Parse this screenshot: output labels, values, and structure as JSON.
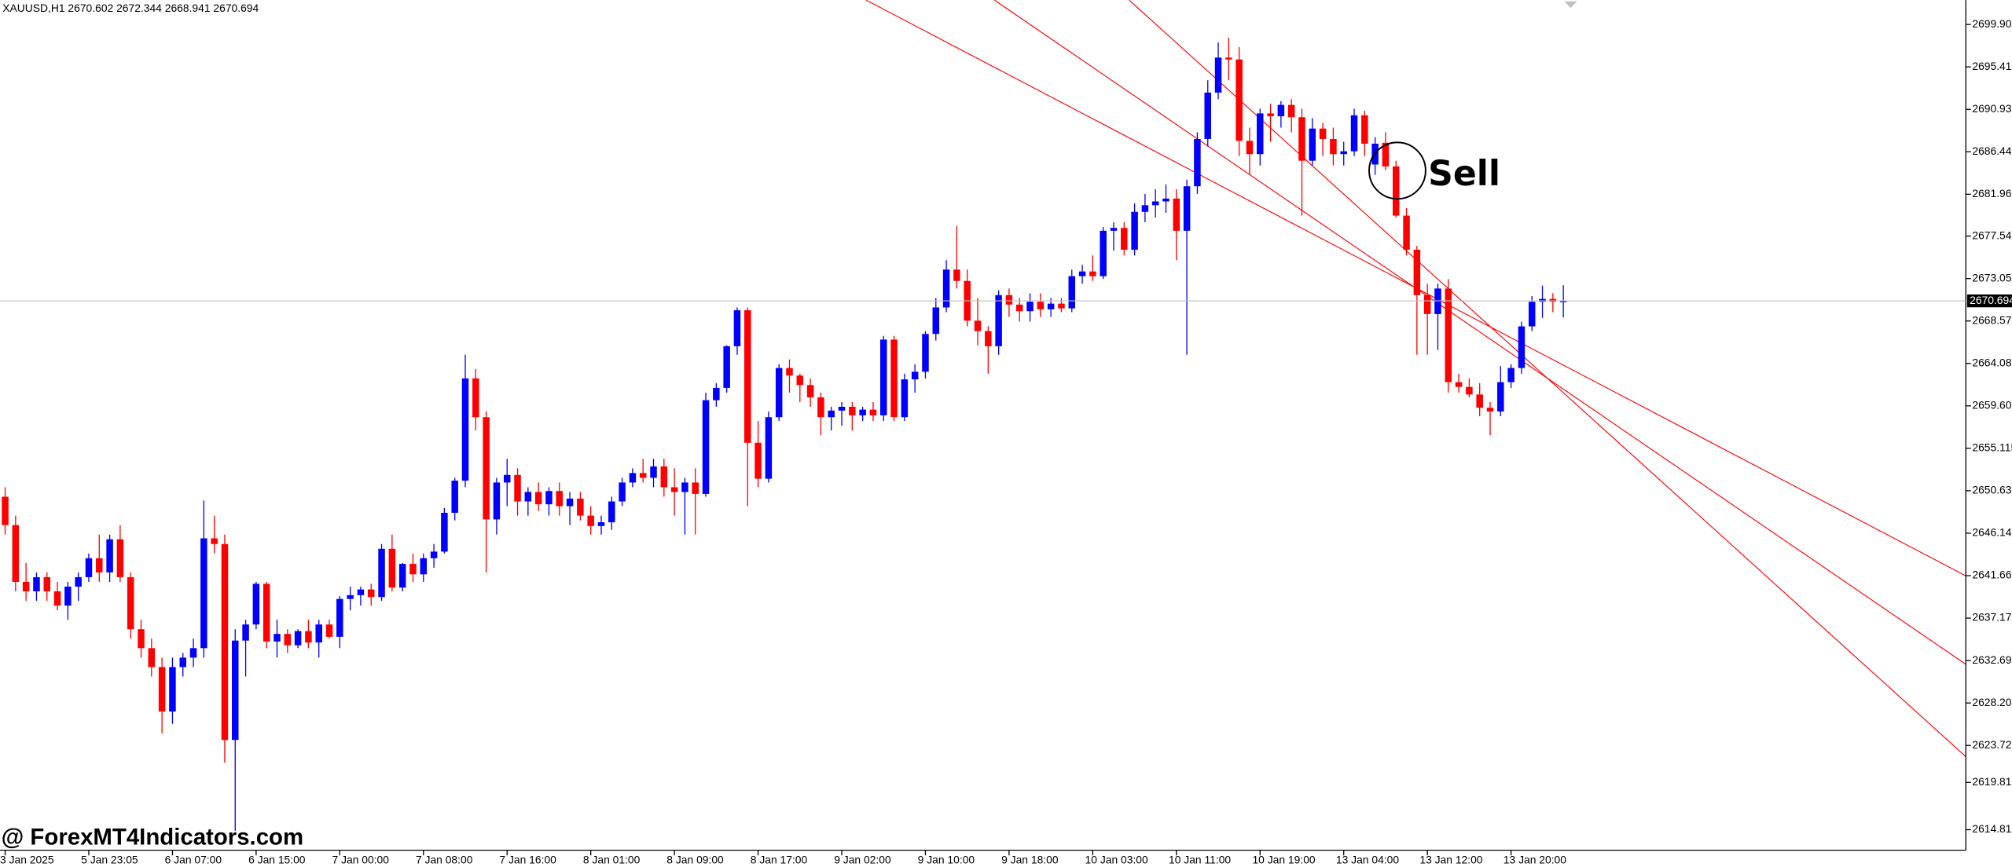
{
  "chart_data": {
    "type": "candlestick",
    "header": "XAUUSD,H1  2670.602 2672.344 2668.941 2670.694",
    "annotation": "Sell",
    "watermark": "@ ForexMT4Indicators.com",
    "up_color": "#0000ff",
    "down_color": "#ff0000",
    "last_price": 2670.694,
    "ylim": [
      2612.65,
      2702.47
    ],
    "yticks": [
      {
        "value": 2699.9,
        "label": "2699.900"
      },
      2695.415,
      2690.93,
      2686.445,
      {
        "value": 2681.96,
        "label": "2681.960"
      },
      {
        "value": 2677.54,
        "label": "2677.540"
      },
      2673.055,
      {
        "value": 2668.57,
        "label": "2668.570"
      },
      2664.085,
      {
        "value": 2659.6,
        "label": "2659.600"
      },
      2655.115,
      {
        "value": 2650.63,
        "label": "2650.630"
      },
      2646.145,
      {
        "value": 2641.66,
        "label": "2641.660"
      },
      2637.175,
      {
        "value": 2632.69,
        "label": "2632.690"
      },
      2628.205,
      {
        "value": 2623.72,
        "label": "2623.720"
      },
      2619.815,
      2614.815
    ],
    "xticks": [
      {
        "value": 0,
        "label": "3 Jan 2025"
      },
      {
        "value": 8,
        "label": "5 Jan 23:05"
      },
      {
        "value": 16,
        "label": "6 Jan 07:00"
      },
      {
        "value": 24,
        "label": "6 Jan 15:00"
      },
      {
        "value": 32,
        "label": "7 Jan 00:00"
      },
      {
        "value": 40,
        "label": "7 Jan 08:00"
      },
      {
        "value": 48,
        "label": "7 Jan 16:00"
      },
      {
        "value": 56,
        "label": "8 Jan 01:00"
      },
      {
        "value": 64,
        "label": "8 Jan 09:00"
      },
      {
        "value": 72,
        "label": "8 Jan 17:00"
      },
      {
        "value": 80,
        "label": "9 Jan 02:00"
      },
      {
        "value": 88,
        "label": "9 Jan 10:00"
      },
      {
        "value": 96,
        "label": "9 Jan 18:00"
      },
      {
        "value": 104,
        "label": "10 Jan 03:00"
      },
      {
        "value": 112,
        "label": "10 Jan 11:00"
      },
      {
        "value": 120,
        "label": "10 Jan 19:00"
      },
      {
        "value": 128,
        "label": "13 Jan 04:00"
      },
      {
        "value": 136,
        "label": "13 Jan 12:00"
      },
      {
        "value": 144,
        "label": "13 Jan 20:00"
      }
    ],
    "candles": [
      {
        "o": 2650,
        "h": 2651,
        "l": 2646,
        "c": 2647
      },
      {
        "o": 2647,
        "h": 2648,
        "l": 2640,
        "c": 2641
      },
      {
        "o": 2641,
        "h": 2643,
        "l": 2639,
        "c": 2640
      },
      {
        "o": 2640,
        "h": 2642,
        "l": 2639,
        "c": 2641.5
      },
      {
        "o": 2641.5,
        "h": 2642,
        "l": 2639,
        "c": 2640
      },
      {
        "o": 2640,
        "h": 2641,
        "l": 2638,
        "c": 2638.5
      },
      {
        "o": 2638.5,
        "h": 2641,
        "l": 2637,
        "c": 2640.5
      },
      {
        "o": 2640.5,
        "h": 2642,
        "l": 2639,
        "c": 2641.5
      },
      {
        "o": 2641.5,
        "h": 2644,
        "l": 2641,
        "c": 2643.5
      },
      {
        "o": 2643.5,
        "h": 2646,
        "l": 2641,
        "c": 2642
      },
      {
        "o": 2642,
        "h": 2646,
        "l": 2641,
        "c": 2645.5
      },
      {
        "o": 2645.5,
        "h": 2647,
        "l": 2641,
        "c": 2641.5
      },
      {
        "o": 2641.5,
        "h": 2642,
        "l": 2635,
        "c": 2636
      },
      {
        "o": 2636,
        "h": 2637,
        "l": 2633,
        "c": 2634
      },
      {
        "o": 2634,
        "h": 2635,
        "l": 2631,
        "c": 2632
      },
      {
        "o": 2632,
        "h": 2633,
        "l": 2625,
        "c": 2627.3
      },
      {
        "o": 2627.3,
        "h": 2633,
        "l": 2626,
        "c": 2632
      },
      {
        "o": 2632,
        "h": 2633.5,
        "l": 2631,
        "c": 2633
      },
      {
        "o": 2633,
        "h": 2635,
        "l": 2632,
        "c": 2634
      },
      {
        "o": 2634,
        "h": 2649.6,
        "l": 2633,
        "c": 2645.6
      },
      {
        "o": 2645.6,
        "h": 2648,
        "l": 2644,
        "c": 2645
      },
      {
        "o": 2645,
        "h": 2646,
        "l": 2621.9,
        "c": 2624.3
      },
      {
        "o": 2624.3,
        "h": 2636,
        "l": 2614.7,
        "c": 2634.8
      },
      {
        "o": 2634.8,
        "h": 2637,
        "l": 2631,
        "c": 2636.5
      },
      {
        "o": 2636.5,
        "h": 2641,
        "l": 2636,
        "c": 2640.8
      },
      {
        "o": 2640.8,
        "h": 2641,
        "l": 2634,
        "c": 2634.7
      },
      {
        "o": 2634.7,
        "h": 2637,
        "l": 2633,
        "c": 2635.5
      },
      {
        "o": 2635.5,
        "h": 2636,
        "l": 2633.5,
        "c": 2634.3
      },
      {
        "o": 2634.3,
        "h": 2636,
        "l": 2634,
        "c": 2635.8
      },
      {
        "o": 2635.8,
        "h": 2637,
        "l": 2634,
        "c": 2634.6
      },
      {
        "o": 2634.6,
        "h": 2637,
        "l": 2633,
        "c": 2636.5
      },
      {
        "o": 2636.5,
        "h": 2637,
        "l": 2635,
        "c": 2635.2
      },
      {
        "o": 2635.2,
        "h": 2639.5,
        "l": 2634,
        "c": 2639.2
      },
      {
        "o": 2639.2,
        "h": 2640.5,
        "l": 2638,
        "c": 2639.6
      },
      {
        "o": 2639.6,
        "h": 2640.5,
        "l": 2638.5,
        "c": 2640.2
      },
      {
        "o": 2640.2,
        "h": 2640.8,
        "l": 2638.5,
        "c": 2639.4
      },
      {
        "o": 2639.4,
        "h": 2645,
        "l": 2639,
        "c": 2644.5
      },
      {
        "o": 2644.5,
        "h": 2646,
        "l": 2640,
        "c": 2640.4
      },
      {
        "o": 2640.4,
        "h": 2643,
        "l": 2640,
        "c": 2642.9
      },
      {
        "o": 2642.9,
        "h": 2644,
        "l": 2641,
        "c": 2641.8
      },
      {
        "o": 2641.8,
        "h": 2644,
        "l": 2641,
        "c": 2643.5
      },
      {
        "o": 2643.5,
        "h": 2645,
        "l": 2642.5,
        "c": 2644.2
      },
      {
        "o": 2644.2,
        "h": 2648.8,
        "l": 2644,
        "c": 2648.3
      },
      {
        "o": 2648.3,
        "h": 2652,
        "l": 2647.5,
        "c": 2651.7
      },
      {
        "o": 2651.7,
        "h": 2665,
        "l": 2651,
        "c": 2662.5
      },
      {
        "o": 2662.5,
        "h": 2663.5,
        "l": 2657,
        "c": 2658.4
      },
      {
        "o": 2658.4,
        "h": 2659,
        "l": 2642,
        "c": 2647.6
      },
      {
        "o": 2647.6,
        "h": 2652,
        "l": 2646,
        "c": 2651.5
      },
      {
        "o": 2651.5,
        "h": 2654,
        "l": 2649,
        "c": 2652.3
      },
      {
        "o": 2652.3,
        "h": 2653,
        "l": 2648,
        "c": 2649.5
      },
      {
        "o": 2649.5,
        "h": 2651,
        "l": 2648,
        "c": 2650.5
      },
      {
        "o": 2650.5,
        "h": 2651.5,
        "l": 2648.5,
        "c": 2649.2
      },
      {
        "o": 2649.2,
        "h": 2651,
        "l": 2648,
        "c": 2650.6
      },
      {
        "o": 2650.6,
        "h": 2651.5,
        "l": 2648,
        "c": 2649
      },
      {
        "o": 2649,
        "h": 2650.5,
        "l": 2647,
        "c": 2649.8
      },
      {
        "o": 2649.8,
        "h": 2650.5,
        "l": 2647.5,
        "c": 2648
      },
      {
        "o": 2648,
        "h": 2649,
        "l": 2646,
        "c": 2646.9
      },
      {
        "o": 2646.9,
        "h": 2648,
        "l": 2646,
        "c": 2647.3
      },
      {
        "o": 2647.3,
        "h": 2650,
        "l": 2646.5,
        "c": 2649.5
      },
      {
        "o": 2649.5,
        "h": 2652,
        "l": 2649,
        "c": 2651.5
      },
      {
        "o": 2651.5,
        "h": 2653,
        "l": 2651,
        "c": 2652.5
      },
      {
        "o": 2652.5,
        "h": 2654,
        "l": 2651.5,
        "c": 2652
      },
      {
        "o": 2652,
        "h": 2654,
        "l": 2651,
        "c": 2653.2
      },
      {
        "o": 2653.2,
        "h": 2654,
        "l": 2650,
        "c": 2651
      },
      {
        "o": 2651,
        "h": 2653,
        "l": 2648,
        "c": 2650.5
      },
      {
        "o": 2650.5,
        "h": 2652,
        "l": 2646,
        "c": 2651.5
      },
      {
        "o": 2651.5,
        "h": 2653,
        "l": 2646,
        "c": 2650.3
      },
      {
        "o": 2650.3,
        "h": 2661,
        "l": 2650,
        "c": 2660.2
      },
      {
        "o": 2660.2,
        "h": 2662,
        "l": 2659.5,
        "c": 2661.5
      },
      {
        "o": 2661.5,
        "h": 2666,
        "l": 2661,
        "c": 2665.9
      },
      {
        "o": 2665.9,
        "h": 2670,
        "l": 2665,
        "c": 2669.7
      },
      {
        "o": 2669.7,
        "h": 2670,
        "l": 2649,
        "c": 2655.7
      },
      {
        "o": 2655.7,
        "h": 2658,
        "l": 2651,
        "c": 2651.9
      },
      {
        "o": 2651.9,
        "h": 2659,
        "l": 2651.5,
        "c": 2658.4
      },
      {
        "o": 2658.4,
        "h": 2664,
        "l": 2658,
        "c": 2663.6
      },
      {
        "o": 2663.6,
        "h": 2664.5,
        "l": 2661,
        "c": 2662.8
      },
      {
        "o": 2662.8,
        "h": 2663,
        "l": 2660,
        "c": 2661.8
      },
      {
        "o": 2661.8,
        "h": 2662.5,
        "l": 2659.5,
        "c": 2660.5
      },
      {
        "o": 2660.5,
        "h": 2661,
        "l": 2656.5,
        "c": 2658.4
      },
      {
        "o": 2658.4,
        "h": 2659.5,
        "l": 2657,
        "c": 2659.1
      },
      {
        "o": 2659.1,
        "h": 2660,
        "l": 2657.5,
        "c": 2659.5
      },
      {
        "o": 2659.5,
        "h": 2660,
        "l": 2657,
        "c": 2658.6
      },
      {
        "o": 2658.6,
        "h": 2659.5,
        "l": 2658,
        "c": 2659.2
      },
      {
        "o": 2659.2,
        "h": 2660,
        "l": 2658,
        "c": 2658.6
      },
      {
        "o": 2658.6,
        "h": 2667,
        "l": 2658,
        "c": 2666.6
      },
      {
        "o": 2666.6,
        "h": 2667,
        "l": 2658,
        "c": 2658.4
      },
      {
        "o": 2658.4,
        "h": 2663,
        "l": 2658,
        "c": 2662.4
      },
      {
        "o": 2662.4,
        "h": 2664,
        "l": 2661,
        "c": 2663.2
      },
      {
        "o": 2663.2,
        "h": 2667.5,
        "l": 2662.5,
        "c": 2667.2
      },
      {
        "o": 2667.2,
        "h": 2671,
        "l": 2666.5,
        "c": 2670
      },
      {
        "o": 2670,
        "h": 2675,
        "l": 2669.5,
        "c": 2674
      },
      {
        "o": 2674,
        "h": 2678.6,
        "l": 2672,
        "c": 2672.8
      },
      {
        "o": 2672.8,
        "h": 2674,
        "l": 2668,
        "c": 2668.6
      },
      {
        "o": 2668.6,
        "h": 2671,
        "l": 2666,
        "c": 2667.5
      },
      {
        "o": 2667.5,
        "h": 2668,
        "l": 2663,
        "c": 2665.9
      },
      {
        "o": 2665.9,
        "h": 2671.8,
        "l": 2665,
        "c": 2671.3
      },
      {
        "o": 2671.3,
        "h": 2672,
        "l": 2669,
        "c": 2670.3
      },
      {
        "o": 2670.3,
        "h": 2671,
        "l": 2668.5,
        "c": 2669.6
      },
      {
        "o": 2669.6,
        "h": 2671.5,
        "l": 2668.5,
        "c": 2670.6
      },
      {
        "o": 2670.6,
        "h": 2671.5,
        "l": 2669,
        "c": 2669.8
      },
      {
        "o": 2669.8,
        "h": 2671,
        "l": 2669,
        "c": 2670.4
      },
      {
        "o": 2670.4,
        "h": 2671,
        "l": 2669.5,
        "c": 2669.9
      },
      {
        "o": 2669.9,
        "h": 2674,
        "l": 2669.5,
        "c": 2673.3
      },
      {
        "o": 2673.3,
        "h": 2674.5,
        "l": 2672.5,
        "c": 2673.8
      },
      {
        "o": 2673.8,
        "h": 2675.5,
        "l": 2672.8,
        "c": 2673.3
      },
      {
        "o": 2673.3,
        "h": 2678.5,
        "l": 2673,
        "c": 2678.1
      },
      {
        "o": 2678.1,
        "h": 2679,
        "l": 2676,
        "c": 2678.4
      },
      {
        "o": 2678.4,
        "h": 2679,
        "l": 2675.5,
        "c": 2676.1
      },
      {
        "o": 2676.1,
        "h": 2681,
        "l": 2675.5,
        "c": 2680.1
      },
      {
        "o": 2680.1,
        "h": 2682,
        "l": 2679,
        "c": 2680.8
      },
      {
        "o": 2680.8,
        "h": 2682.5,
        "l": 2679.5,
        "c": 2681.2
      },
      {
        "o": 2681.2,
        "h": 2683,
        "l": 2680,
        "c": 2681.5
      },
      {
        "o": 2681.5,
        "h": 2682.5,
        "l": 2675,
        "c": 2678.1
      },
      {
        "o": 2678.1,
        "h": 2683.5,
        "l": 2665,
        "c": 2682.8
      },
      {
        "o": 2682.8,
        "h": 2688.5,
        "l": 2682,
        "c": 2687.8
      },
      {
        "o": 2687.8,
        "h": 2694,
        "l": 2687,
        "c": 2692.7
      },
      {
        "o": 2692.7,
        "h": 2698,
        "l": 2692,
        "c": 2696.4
      },
      {
        "o": 2696.4,
        "h": 2698.5,
        "l": 2694,
        "c": 2696.2
      },
      {
        "o": 2696.2,
        "h": 2697.5,
        "l": 2686,
        "c": 2687.6
      },
      {
        "o": 2687.6,
        "h": 2689,
        "l": 2684,
        "c": 2686.2
      },
      {
        "o": 2686.2,
        "h": 2691,
        "l": 2685,
        "c": 2690.5
      },
      {
        "o": 2690.5,
        "h": 2691.5,
        "l": 2687.5,
        "c": 2690.2
      },
      {
        "o": 2690.2,
        "h": 2691.8,
        "l": 2689,
        "c": 2691.4
      },
      {
        "o": 2691.4,
        "h": 2692,
        "l": 2688.5,
        "c": 2690.1
      },
      {
        "o": 2690.1,
        "h": 2691,
        "l": 2679.7,
        "c": 2685.5
      },
      {
        "o": 2685.5,
        "h": 2690,
        "l": 2685,
        "c": 2688.9
      },
      {
        "o": 2688.9,
        "h": 2689.5,
        "l": 2686,
        "c": 2687.8
      },
      {
        "o": 2687.8,
        "h": 2689,
        "l": 2685,
        "c": 2686.2
      },
      {
        "o": 2686.2,
        "h": 2687.5,
        "l": 2685,
        "c": 2686.5
      },
      {
        "o": 2686.5,
        "h": 2691,
        "l": 2686,
        "c": 2690.3
      },
      {
        "o": 2690.3,
        "h": 2690.8,
        "l": 2686,
        "c": 2687.3
      },
      {
        "o": 2685.1,
        "h": 2688,
        "l": 2684,
        "c": 2687.3
      },
      {
        "o": 2687.4,
        "h": 2688.5,
        "l": 2684.5,
        "c": 2684.9
      },
      {
        "o": 2684.9,
        "h": 2685.5,
        "l": 2679.5,
        "c": 2679.7
      },
      {
        "o": 2679.7,
        "h": 2680.5,
        "l": 2675.5,
        "c": 2676.1
      },
      {
        "o": 2676.1,
        "h": 2676.5,
        "l": 2665,
        "c": 2671.3
      },
      {
        "o": 2671.3,
        "h": 2672.5,
        "l": 2665,
        "c": 2669.3
      },
      {
        "o": 2669.3,
        "h": 2672.5,
        "l": 2665.5,
        "c": 2672
      },
      {
        "o": 2672,
        "h": 2673,
        "l": 2661,
        "c": 2662.1
      },
      {
        "o": 2662.1,
        "h": 2663,
        "l": 2661,
        "c": 2661.6
      },
      {
        "o": 2661.6,
        "h": 2662.5,
        "l": 2660.5,
        "c": 2660.8
      },
      {
        "o": 2660.8,
        "h": 2662,
        "l": 2658.5,
        "c": 2659.4
      },
      {
        "o": 2659.4,
        "h": 2660,
        "l": 2656.5,
        "c": 2659
      },
      {
        "o": 2659,
        "h": 2663.8,
        "l": 2658.5,
        "c": 2662.1
      },
      {
        "o": 2662.1,
        "h": 2664,
        "l": 2661.5,
        "c": 2663.6
      },
      {
        "o": 2663.6,
        "h": 2668.5,
        "l": 2663,
        "c": 2668
      },
      {
        "o": 2668,
        "h": 2671.2,
        "l": 2667.5,
        "c": 2670.6
      },
      {
        "o": 2670.6,
        "h": 2672.3,
        "l": 2668.9,
        "c": 2670.9
      },
      {
        "o": 2670.9,
        "h": 2671.5,
        "l": 2669.5,
        "c": 2670.6
      },
      {
        "o": 2670.602,
        "h": 2672.344,
        "l": 2668.941,
        "c": 2670.694
      }
    ]
  }
}
